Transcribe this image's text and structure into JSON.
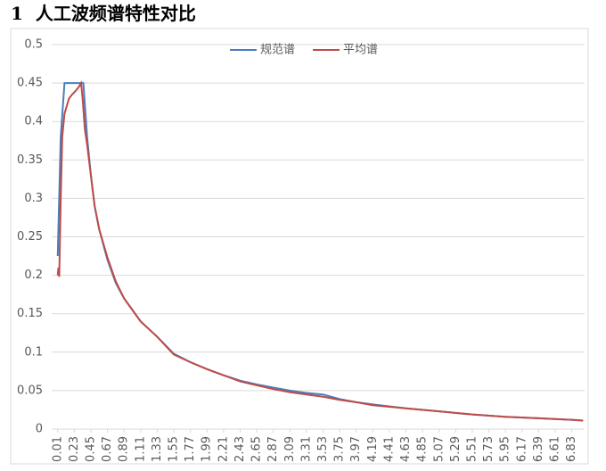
{
  "heading": {
    "number": "1",
    "title": "人工波频谱特性对比"
  },
  "chart_data": {
    "type": "line",
    "ylim": [
      0,
      0.5
    ],
    "yticks": [
      0,
      0.05,
      0.1,
      0.15,
      0.2,
      0.25,
      0.3,
      0.35,
      0.4,
      0.45,
      0.5
    ],
    "xlim": [
      -0.07,
      7.0
    ],
    "xticks": [
      0.01,
      0.23,
      0.45,
      0.67,
      0.89,
      1.11,
      1.33,
      1.55,
      1.77,
      1.99,
      2.21,
      2.43,
      2.65,
      2.87,
      3.09,
      3.31,
      3.53,
      3.75,
      3.97,
      4.19,
      4.41,
      4.63,
      4.85,
      5.07,
      5.29,
      5.51,
      5.73,
      5.95,
      6.17,
      6.39,
      6.61,
      6.83
    ],
    "grid": true,
    "legend": "top",
    "series": [
      {
        "name": "规范谱",
        "color": "#4a7ebb",
        "x": [
          0.01,
          0.05,
          0.1,
          0.35,
          0.4,
          0.45,
          0.5,
          0.56,
          0.67,
          0.78,
          0.89,
          1.0,
          1.11,
          1.22,
          1.33,
          1.55,
          1.77,
          1.99,
          2.21,
          2.43,
          2.65,
          2.87,
          3.09,
          3.31,
          3.53,
          3.75,
          3.97,
          4.19,
          4.63,
          5.07,
          5.51,
          5.95,
          6.39,
          6.83,
          6.98
        ],
        "values": [
          0.225,
          0.38,
          0.45,
          0.45,
          0.38,
          0.33,
          0.29,
          0.26,
          0.22,
          0.19,
          0.17,
          0.155,
          0.14,
          0.13,
          0.12,
          0.098,
          0.087,
          0.078,
          0.07,
          0.063,
          0.058,
          0.054,
          0.05,
          0.047,
          0.045,
          0.039,
          0.035,
          0.032,
          0.027,
          0.023,
          0.019,
          0.016,
          0.014,
          0.012,
          0.011
        ]
      },
      {
        "name": "平均谱",
        "color": "#be4b48",
        "x": [
          0.01,
          0.02,
          0.03,
          0.05,
          0.07,
          0.1,
          0.13,
          0.16,
          0.2,
          0.25,
          0.29,
          0.32,
          0.34,
          0.37,
          0.4,
          0.45,
          0.5,
          0.56,
          0.67,
          0.78,
          0.89,
          1.0,
          1.11,
          1.22,
          1.33,
          1.55,
          1.77,
          1.99,
          2.21,
          2.43,
          2.65,
          2.87,
          3.09,
          3.31,
          3.53,
          3.75,
          3.97,
          4.19,
          4.63,
          5.07,
          5.51,
          5.95,
          6.39,
          6.83,
          6.98
        ],
        "values": [
          0.2,
          0.21,
          0.198,
          0.3,
          0.38,
          0.41,
          0.42,
          0.43,
          0.435,
          0.44,
          0.445,
          0.45,
          0.43,
          0.39,
          0.37,
          0.33,
          0.29,
          0.26,
          0.223,
          0.192,
          0.17,
          0.155,
          0.14,
          0.13,
          0.12,
          0.097,
          0.087,
          0.078,
          0.07,
          0.062,
          0.057,
          0.052,
          0.048,
          0.045,
          0.042,
          0.038,
          0.035,
          0.031,
          0.027,
          0.023,
          0.019,
          0.016,
          0.014,
          0.012,
          0.011
        ]
      }
    ]
  }
}
